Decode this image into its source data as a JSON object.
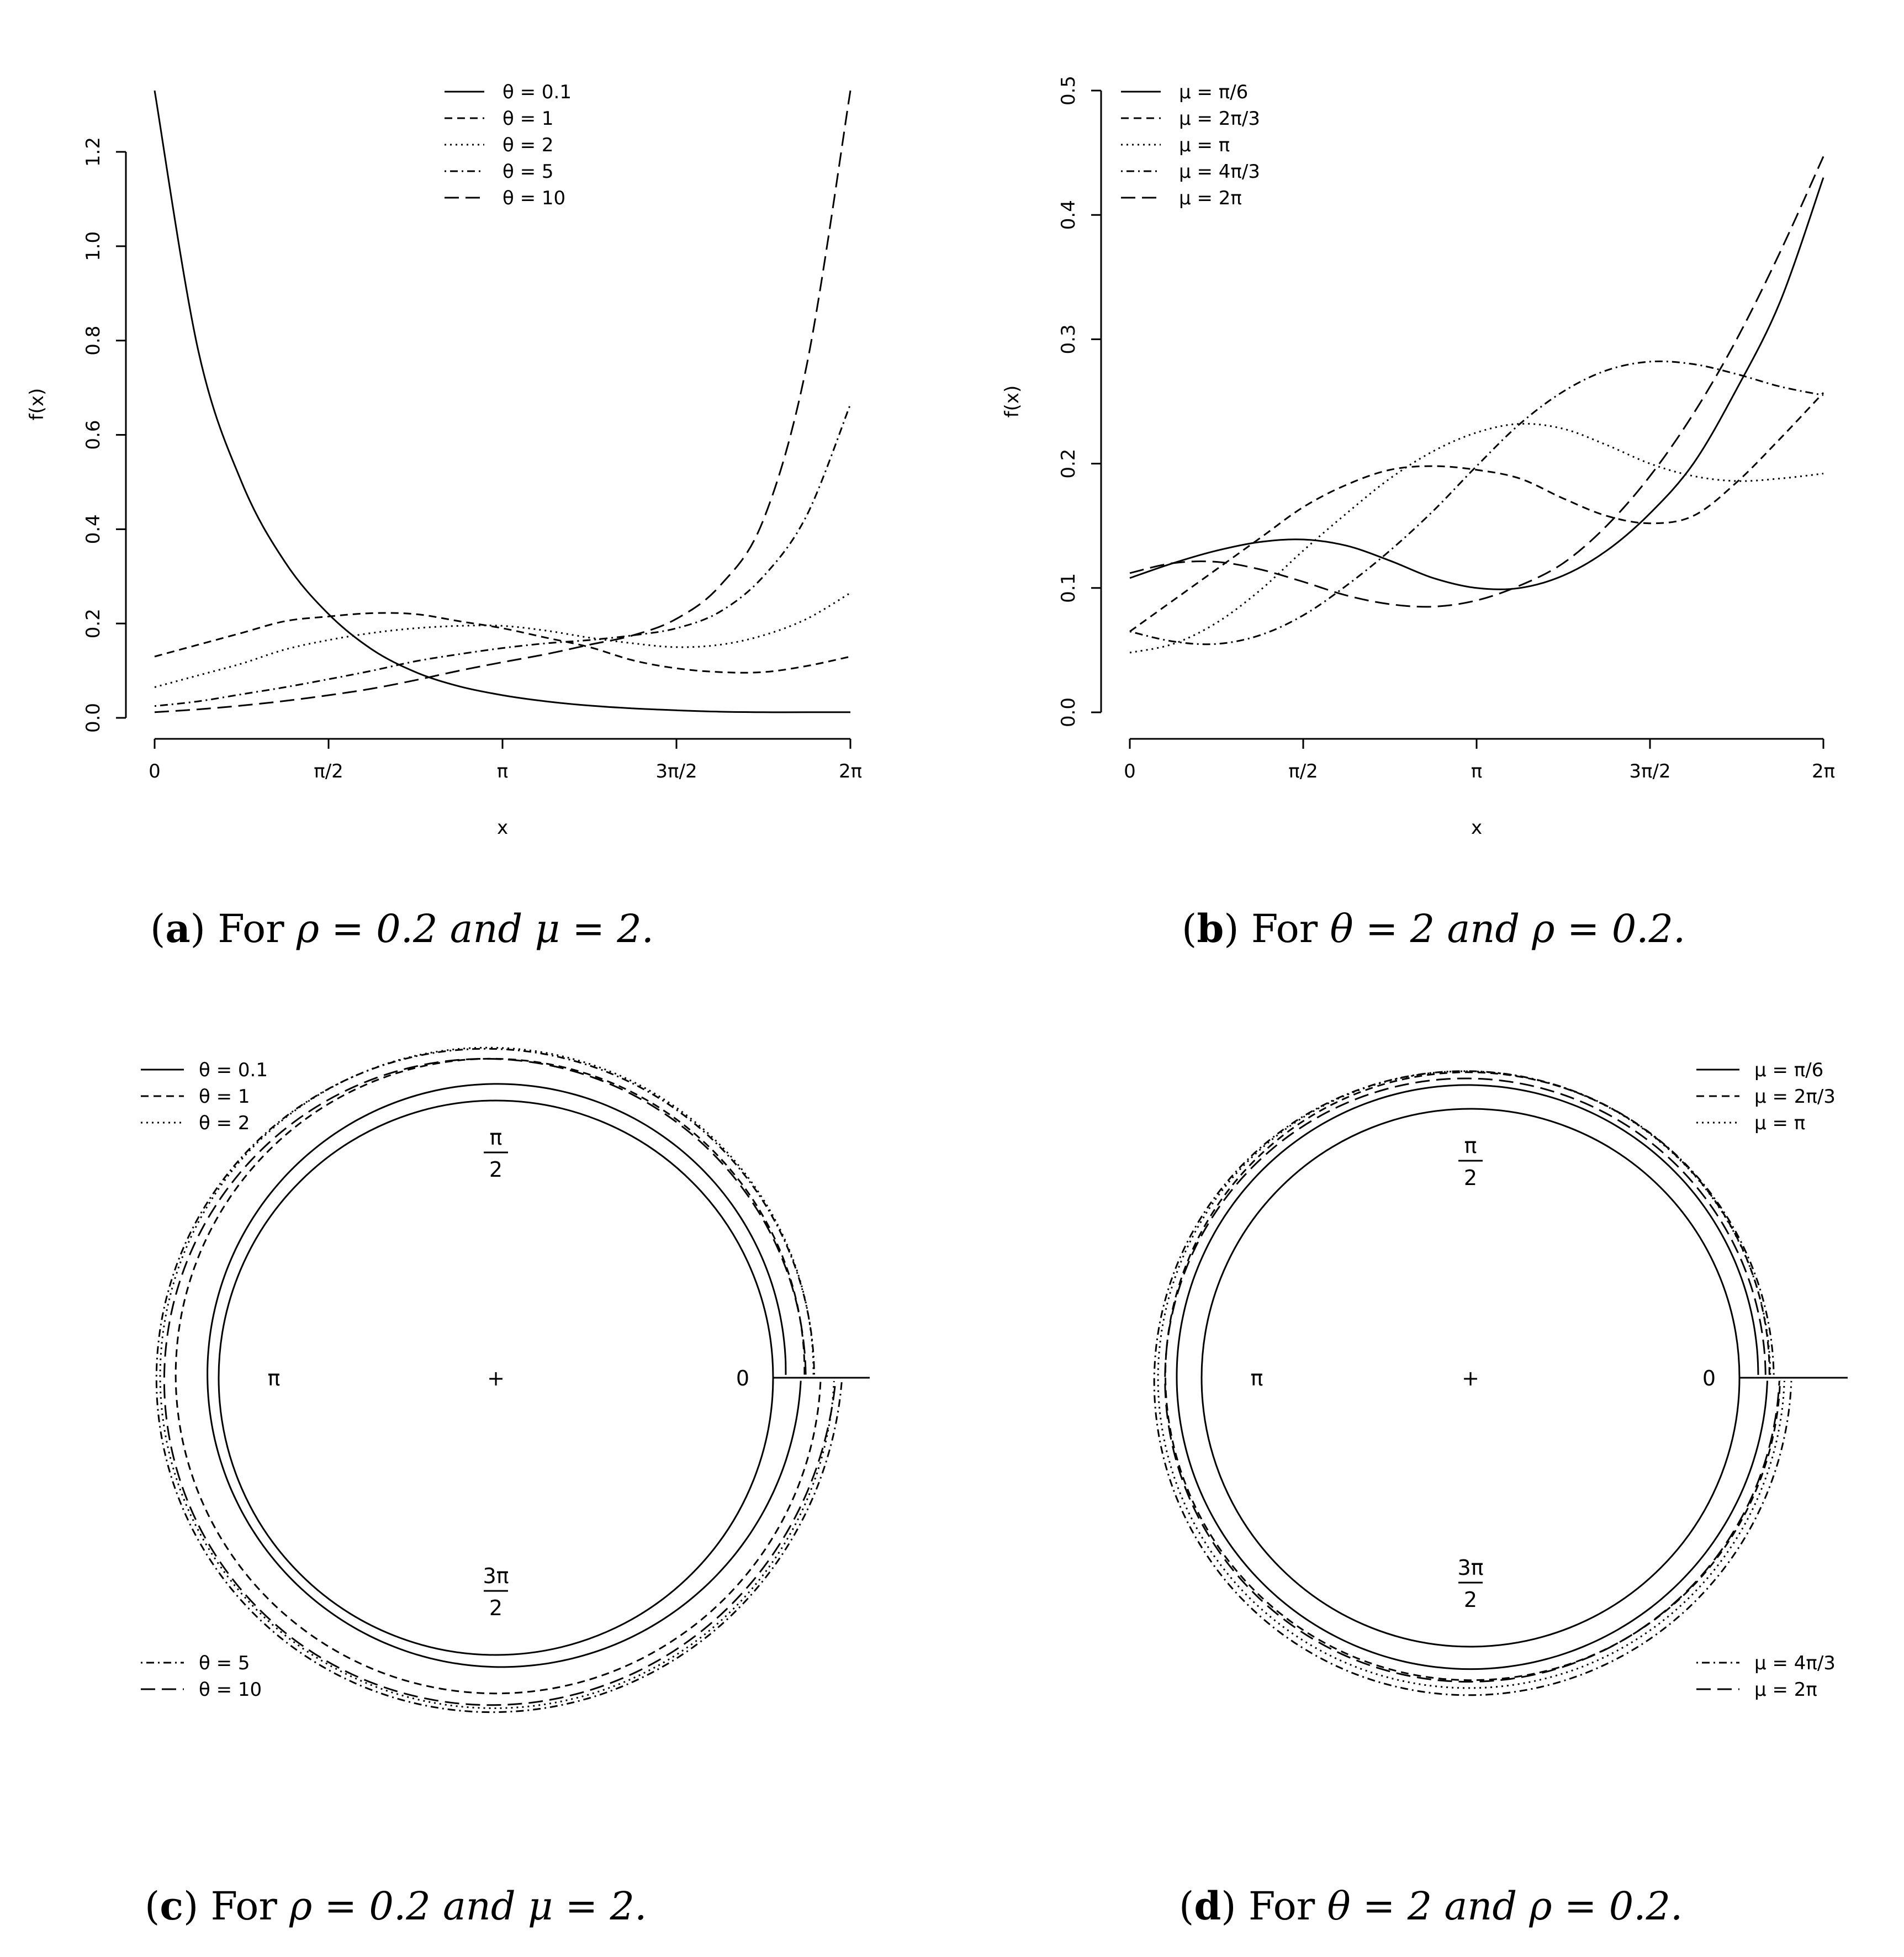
{
  "figure": {
    "panels": [
      {
        "id": "a",
        "label": "a",
        "caption_pre": "For",
        "caption_math": "ρ = 0.2 and μ = 2."
      },
      {
        "id": "b",
        "label": "b",
        "caption_pre": "For",
        "caption_math": "θ = 2 and ρ = 0.2."
      },
      {
        "id": "c",
        "label": "c",
        "caption_pre": "For",
        "caption_math": "ρ = 0.2 and μ = 2."
      },
      {
        "id": "d",
        "label": "d",
        "caption_pre": "For",
        "caption_math": "θ = 2 and ρ = 0.2."
      }
    ]
  },
  "chart_data": [
    {
      "type": "line",
      "panel": "a",
      "xlabel": "x",
      "ylabel": "f(x)",
      "xlim": [
        0,
        6.2832
      ],
      "ylim": [
        0,
        1.33
      ],
      "x_ticks": [
        0,
        1.5708,
        3.1416,
        4.7124,
        6.2832
      ],
      "x_tick_labels": [
        "0",
        "π/2",
        "π",
        "3π/2",
        "2π"
      ],
      "y_ticks": [
        0,
        0.2,
        0.4,
        0.6,
        0.8,
        1.0,
        1.2
      ],
      "y_tick_labels": [
        "0.0",
        "0.2",
        "0.4",
        "0.6",
        "0.8",
        "1.0",
        "1.2"
      ],
      "legend_position": "top-center",
      "x": [
        0,
        0.3927,
        0.7854,
        1.1781,
        1.5708,
        1.9635,
        2.3562,
        2.7489,
        3.1416,
        3.5343,
        3.927,
        4.3197,
        4.7124,
        5.1051,
        5.4978,
        5.8905,
        6.2832
      ],
      "series": [
        {
          "name": "θ = 0.1",
          "style": "solid",
          "values": [
            1.33,
            0.78,
            0.5,
            0.33,
            0.22,
            0.145,
            0.097,
            0.067,
            0.048,
            0.035,
            0.026,
            0.02,
            0.016,
            0.013,
            0.012,
            0.012,
            0.012
          ]
        },
        {
          "name": "θ = 1",
          "style": "dashed",
          "values": [
            0.13,
            0.155,
            0.18,
            0.205,
            0.215,
            0.222,
            0.22,
            0.205,
            0.19,
            0.17,
            0.15,
            0.122,
            0.105,
            0.097,
            0.097,
            0.11,
            0.13
          ]
        },
        {
          "name": "θ = 2",
          "style": "dotted",
          "values": [
            0.065,
            0.09,
            0.115,
            0.145,
            0.165,
            0.18,
            0.19,
            0.195,
            0.195,
            0.185,
            0.17,
            0.158,
            0.15,
            0.155,
            0.175,
            0.21,
            0.265
          ]
        },
        {
          "name": "θ = 5",
          "style": "dotdash",
          "values": [
            0.025,
            0.035,
            0.05,
            0.065,
            0.082,
            0.1,
            0.12,
            0.135,
            0.148,
            0.158,
            0.165,
            0.175,
            0.19,
            0.225,
            0.3,
            0.43,
            0.665
          ]
        },
        {
          "name": "θ = 10",
          "style": "longdash",
          "values": [
            0.012,
            0.018,
            0.026,
            0.036,
            0.048,
            0.062,
            0.08,
            0.1,
            0.118,
            0.135,
            0.155,
            0.175,
            0.21,
            0.28,
            0.42,
            0.75,
            1.33
          ]
        }
      ]
    },
    {
      "type": "line",
      "panel": "b",
      "xlabel": "x",
      "ylabel": "f(x)",
      "xlim": [
        0,
        6.2832
      ],
      "ylim": [
        0,
        0.5
      ],
      "x_ticks": [
        0,
        1.5708,
        3.1416,
        4.7124,
        6.2832
      ],
      "x_tick_labels": [
        "0",
        "π/2",
        "π",
        "3π/2",
        "2π"
      ],
      "y_ticks": [
        0,
        0.1,
        0.2,
        0.3,
        0.4,
        0.5
      ],
      "y_tick_labels": [
        "0.0",
        "0.1",
        "0.2",
        "0.3",
        "0.4",
        "0.5"
      ],
      "legend_position": "top-left",
      "x": [
        0,
        0.3927,
        0.7854,
        1.1781,
        1.5708,
        1.9635,
        2.3562,
        2.7489,
        3.1416,
        3.5343,
        3.927,
        4.3197,
        4.7124,
        5.1051,
        5.4978,
        5.8905,
        6.2832
      ],
      "series": [
        {
          "name": "μ = π/6",
          "style": "solid",
          "values": [
            0.108,
            0.12,
            0.13,
            0.137,
            0.139,
            0.134,
            0.122,
            0.108,
            0.1,
            0.1,
            0.11,
            0.13,
            0.16,
            0.2,
            0.26,
            0.33,
            0.43
          ]
        },
        {
          "name": "μ = 2π/3",
          "style": "dashed",
          "values": [
            0.065,
            0.09,
            0.115,
            0.14,
            0.165,
            0.183,
            0.195,
            0.198,
            0.195,
            0.188,
            0.172,
            0.158,
            0.152,
            0.158,
            0.185,
            0.22,
            0.257
          ]
        },
        {
          "name": "μ = π",
          "style": "dotted",
          "values": [
            0.048,
            0.055,
            0.072,
            0.098,
            0.13,
            0.16,
            0.188,
            0.21,
            0.225,
            0.232,
            0.228,
            0.215,
            0.2,
            0.19,
            0.186,
            0.188,
            0.192
          ]
        },
        {
          "name": "μ = 4π/3",
          "style": "dotdash",
          "values": [
            0.065,
            0.057,
            0.055,
            0.062,
            0.078,
            0.102,
            0.13,
            0.162,
            0.198,
            0.232,
            0.258,
            0.275,
            0.282,
            0.28,
            0.272,
            0.262,
            0.255
          ]
        },
        {
          "name": "μ = 2π",
          "style": "longdash",
          "values": [
            0.112,
            0.12,
            0.121,
            0.115,
            0.105,
            0.094,
            0.087,
            0.085,
            0.09,
            0.102,
            0.12,
            0.15,
            0.19,
            0.24,
            0.3,
            0.37,
            0.447
          ]
        }
      ]
    },
    {
      "type": "line",
      "subtype": "circular",
      "panel": "c",
      "direction_labels": [
        "0",
        "π/2",
        "π",
        "3π/2"
      ],
      "legend_position": "top-left and bottom-left",
      "series": [
        {
          "name": "θ = 0.1",
          "style": "solid"
        },
        {
          "name": "θ = 1",
          "style": "dashed"
        },
        {
          "name": "θ = 2",
          "style": "dotted"
        },
        {
          "name": "θ = 5",
          "style": "dotdash"
        },
        {
          "name": "θ = 10",
          "style": "longdash"
        }
      ]
    },
    {
      "type": "line",
      "subtype": "circular",
      "panel": "d",
      "direction_labels": [
        "0",
        "π/2",
        "π",
        "3π/2"
      ],
      "legend_position": "top-right and bottom-right",
      "series": [
        {
          "name": "μ = π/6",
          "style": "solid"
        },
        {
          "name": "μ = 2π/3",
          "style": "dashed"
        },
        {
          "name": "μ = π",
          "style": "dotted"
        },
        {
          "name": "μ = 4π/3",
          "style": "dotdash"
        },
        {
          "name": "μ = 2π",
          "style": "longdash"
        }
      ]
    }
  ]
}
